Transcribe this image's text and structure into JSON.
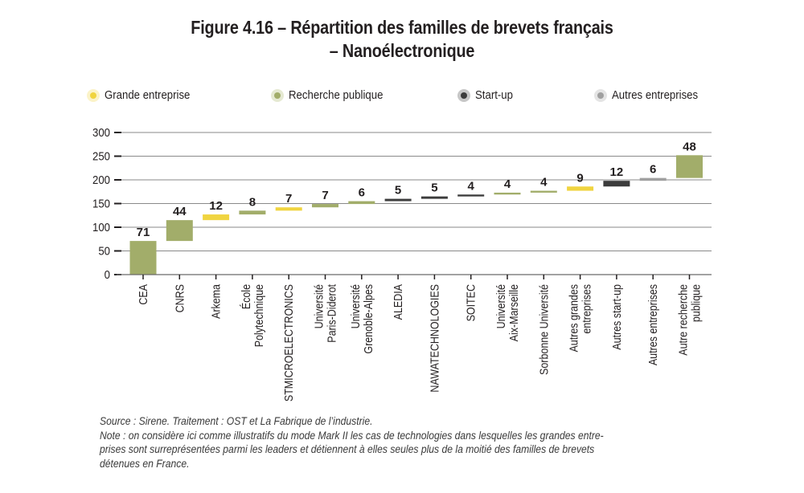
{
  "title_line1": "Figure 4.16 – Répartition des familles de brevets français",
  "title_line2": "– Nanoélectronique",
  "legend": [
    {
      "label": "Grande entreprise",
      "color": "#f0d440",
      "halo": "#fbf3c8"
    },
    {
      "label": "Recherche publique",
      "color": "#a2ad6a",
      "halo": "#e5e9d2"
    },
    {
      "label": "Start-up",
      "color": "#3c3c3c",
      "halo": "#c7c7c7"
    },
    {
      "label": "Autres entreprises",
      "color": "#a0a0a0",
      "halo": "#e4e4e4"
    }
  ],
  "colors": {
    "Grande entreprise": "#f0d440",
    "Recherche publique": "#a2ad6a",
    "Start-up": "#3c3c3c",
    "Autres entreprises": "#a0a0a0",
    "grid": "#8a8a8a",
    "axis": "#6b6b6b",
    "text": "#231f20"
  },
  "chart_data": {
    "type": "bar",
    "subtype": "waterfall",
    "title": "Figure 4.16 – Répartition des familles de brevets français – Nanoélectronique",
    "xlabel": "",
    "ylabel": "",
    "ylim": [
      0,
      300
    ],
    "yticks": [
      0,
      50,
      100,
      150,
      200,
      250,
      300
    ],
    "grid": true,
    "legend_position": "top",
    "categories": [
      [
        "CEA"
      ],
      [
        "CNRS"
      ],
      [
        "Arkema"
      ],
      [
        "École",
        "Polytechnique"
      ],
      [
        "STMICROELECTRONICS"
      ],
      [
        "Université",
        "Paris-Diderot"
      ],
      [
        "Université",
        "Grenoble-Alpes"
      ],
      [
        "ALEDIA"
      ],
      [
        "NAWATECHNOLOGIES"
      ],
      [
        "SOITEC"
      ],
      [
        "Université",
        "Aix-Marseille"
      ],
      [
        "Sorbonne Université"
      ],
      [
        "Autres grandes",
        "entreprises"
      ],
      [
        "Autres start-up"
      ],
      [
        "Autres entreprises"
      ],
      [
        "Autre recherche",
        "publique"
      ]
    ],
    "values": [
      71,
      44,
      12,
      8,
      7,
      7,
      6,
      5,
      5,
      4,
      4,
      4,
      9,
      12,
      6,
      48
    ],
    "groups": [
      "Recherche publique",
      "Recherche publique",
      "Grande entreprise",
      "Recherche publique",
      "Grande entreprise",
      "Recherche publique",
      "Recherche publique",
      "Start-up",
      "Start-up",
      "Start-up",
      "Recherche publique",
      "Recherche publique",
      "Grande entreprise",
      "Start-up",
      "Autres entreprises",
      "Recherche publique"
    ],
    "data_labels": [
      "71",
      "44",
      "12",
      "8",
      "7",
      "7",
      "6",
      "5",
      "5",
      "4",
      "4",
      "4",
      "9",
      "12",
      "6",
      "48"
    ]
  },
  "source": "Source : Sirene. Traitement : OST et La Fabrique de l’industrie.",
  "note_lines": [
    "Note : on considère ici comme illustratifs du mode Mark II les cas de technologies dans lesquelles les grandes entre-",
    "prises sont surreprésentées parmi les leaders et détiennent à elles seules plus de la moitié des familles de brevets",
    "détenues en France."
  ]
}
